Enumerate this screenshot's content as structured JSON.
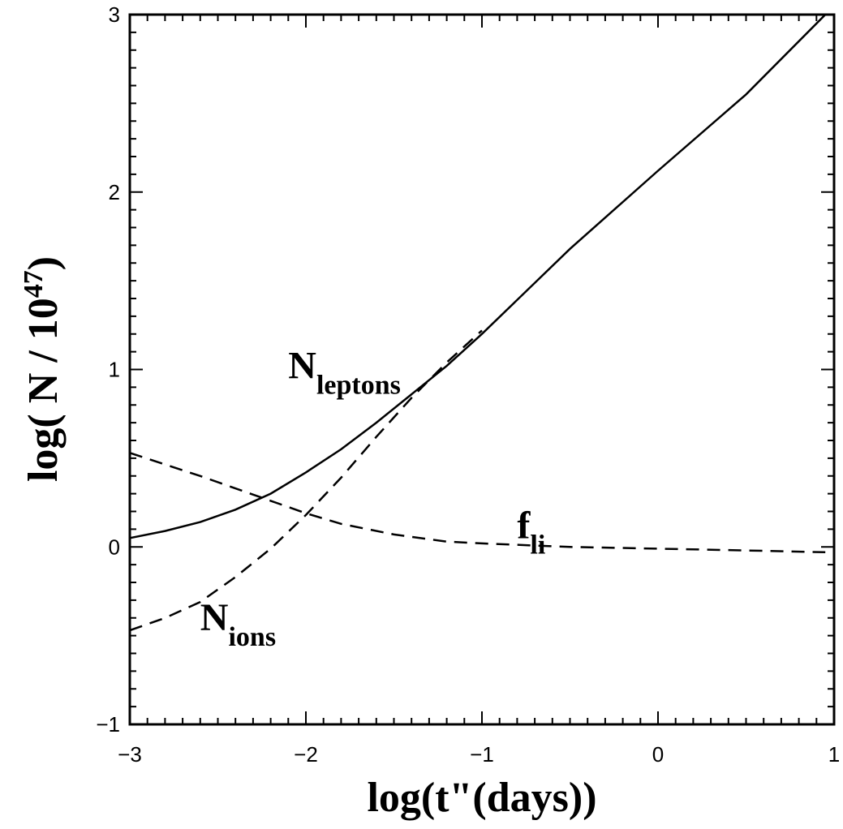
{
  "chart_data": {
    "type": "line",
    "title": "",
    "xlabel": "log(t\"(days))",
    "ylabel": "log( N / 10^47 )",
    "ylabel_parts": {
      "pre": "log( N / 10",
      "sup": "47",
      "post": ")"
    },
    "xlim": [
      -3,
      1
    ],
    "ylim": [
      -1,
      3
    ],
    "xticks": [
      -3,
      -2,
      -1,
      0,
      1
    ],
    "yticks": [
      -1,
      0,
      1,
      2,
      3
    ],
    "xtick_labels": [
      "−3",
      "−2",
      "−1",
      "0",
      "1"
    ],
    "ytick_labels": [
      "−1",
      "0",
      "1",
      "2",
      "3"
    ],
    "grid": false,
    "legend": "none",
    "series": [
      {
        "name": "N_leptons",
        "style": "solid",
        "x": [
          -3.0,
          -2.8,
          -2.6,
          -2.4,
          -2.2,
          -2.0,
          -1.8,
          -1.6,
          -1.4,
          -1.2,
          -1.0,
          -0.5,
          0.0,
          0.5,
          0.95
        ],
        "y": [
          0.05,
          0.09,
          0.14,
          0.21,
          0.3,
          0.42,
          0.55,
          0.7,
          0.86,
          1.02,
          1.2,
          1.68,
          2.12,
          2.55,
          3.0
        ]
      },
      {
        "name": "N_ions",
        "style": "dashed",
        "x": [
          -3.0,
          -2.8,
          -2.6,
          -2.4,
          -2.2,
          -2.0,
          -1.8,
          -1.6,
          -1.4,
          -1.2,
          -1.0
        ],
        "y": [
          -0.47,
          -0.4,
          -0.31,
          -0.17,
          -0.01,
          0.18,
          0.39,
          0.62,
          0.84,
          1.04,
          1.22
        ]
      },
      {
        "name": "f_li",
        "style": "dashed",
        "x": [
          -3.0,
          -2.6,
          -2.2,
          -2.0,
          -1.8,
          -1.5,
          -1.2,
          -1.0,
          -0.5,
          0.0,
          0.5,
          0.95
        ],
        "y": [
          0.53,
          0.4,
          0.26,
          0.19,
          0.13,
          0.07,
          0.03,
          0.02,
          0.0,
          -0.01,
          -0.02,
          -0.03
        ]
      }
    ],
    "annotations": [
      {
        "text": "N",
        "sub": "leptons",
        "x": -2.1,
        "y": 0.95
      },
      {
        "text": "N",
        "sub": "ions",
        "x": -2.6,
        "y": -0.47
      },
      {
        "text": "f",
        "sub": "li",
        "x": -0.8,
        "y": 0.05
      }
    ]
  }
}
